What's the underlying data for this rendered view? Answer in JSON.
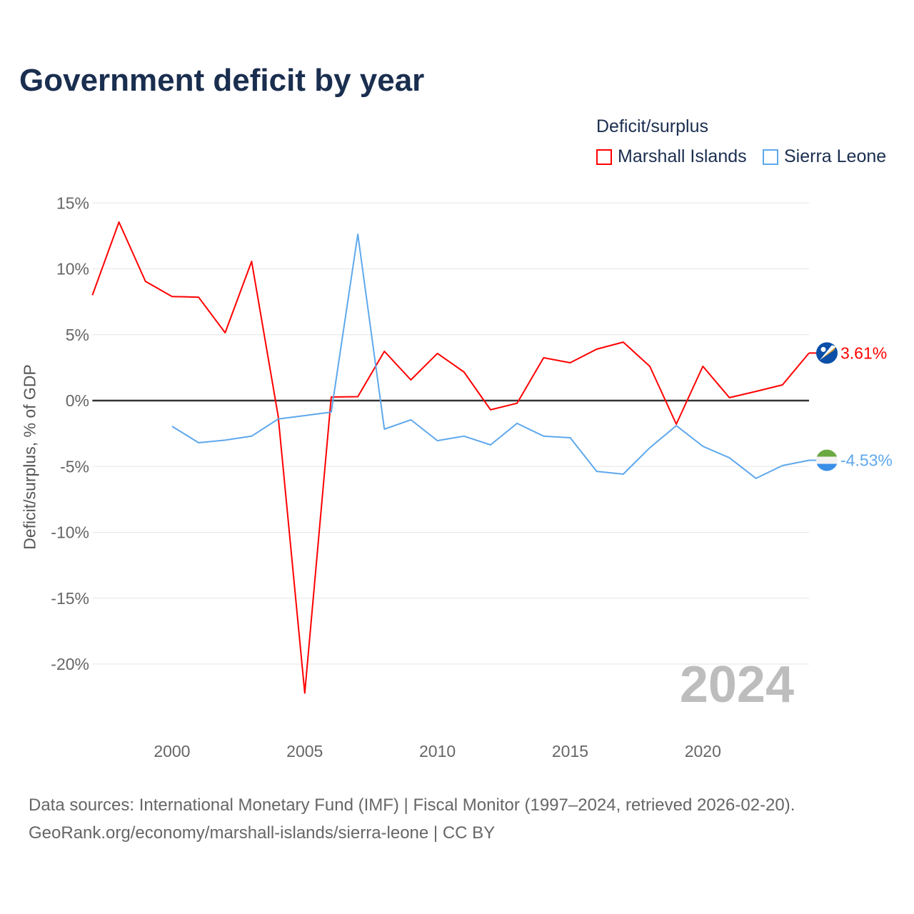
{
  "chart_data": {
    "type": "line",
    "title": "Government deficit by year",
    "ylabel": "Deficit/surplus, % of GDP",
    "xlabel": "",
    "legend_title": "Deficit/surplus",
    "legend_position": "top-right",
    "xlim": [
      1997,
      2024
    ],
    "ylim": [
      -23,
      16
    ],
    "x_ticks": [
      2000,
      2005,
      2010,
      2015,
      2020
    ],
    "y_ticks": [
      15,
      10,
      5,
      0,
      -5,
      -10,
      -15,
      -20
    ],
    "y_tick_labels": [
      "15%",
      "10%",
      "5%",
      "0%",
      "-5%",
      "-10%",
      "-15%",
      "-20%"
    ],
    "grid": true,
    "year_watermark": "2024",
    "series": [
      {
        "name": "Marshall Islands",
        "color": "#ff0000",
        "end_label": "3.61%",
        "flag": "marshall-islands-flag",
        "x": [
          1997,
          1998,
          1999,
          2000,
          2001,
          2002,
          2003,
          2004,
          2005,
          2006,
          2007,
          2008,
          2009,
          2010,
          2011,
          2012,
          2013,
          2014,
          2015,
          2016,
          2017,
          2018,
          2019,
          2020,
          2021,
          2022,
          2023,
          2024
        ],
        "values": [
          8.0,
          13.55,
          9.05,
          7.9,
          7.85,
          5.15,
          10.57,
          -1.2,
          -22.2,
          0.27,
          0.3,
          3.74,
          1.57,
          3.58,
          2.17,
          -0.7,
          -0.2,
          3.25,
          2.87,
          3.9,
          4.44,
          2.6,
          -1.79,
          2.6,
          0.22,
          0.7,
          1.19,
          3.61
        ]
      },
      {
        "name": "Sierra Leone",
        "color": "#5ea8ec",
        "end_label": "-4.53%",
        "flag": "sierra-leone-flag",
        "x": [
          2000,
          2001,
          2002,
          2003,
          2004,
          2005,
          2006,
          2007,
          2008,
          2009,
          2010,
          2011,
          2012,
          2013,
          2014,
          2015,
          2016,
          2017,
          2018,
          2019,
          2020,
          2021,
          2022,
          2023,
          2024
        ],
        "values": [
          -1.95,
          -3.2,
          -3.0,
          -2.7,
          -1.4,
          -1.14,
          -0.87,
          12.63,
          -2.17,
          -1.46,
          -3.04,
          -2.7,
          -3.36,
          -1.73,
          -2.7,
          -2.82,
          -5.37,
          -5.58,
          -3.58,
          -1.9,
          -3.47,
          -4.34,
          -5.9,
          -4.93,
          -4.53
        ]
      }
    ]
  },
  "sources": {
    "line1": "Data sources: International Monetary Fund (IMF) | Fiscal Monitor (1997–2024, retrieved 2026-02-20).",
    "line2": "GeoRank.org/economy/marshall-islands/sierra-leone | CC BY"
  }
}
